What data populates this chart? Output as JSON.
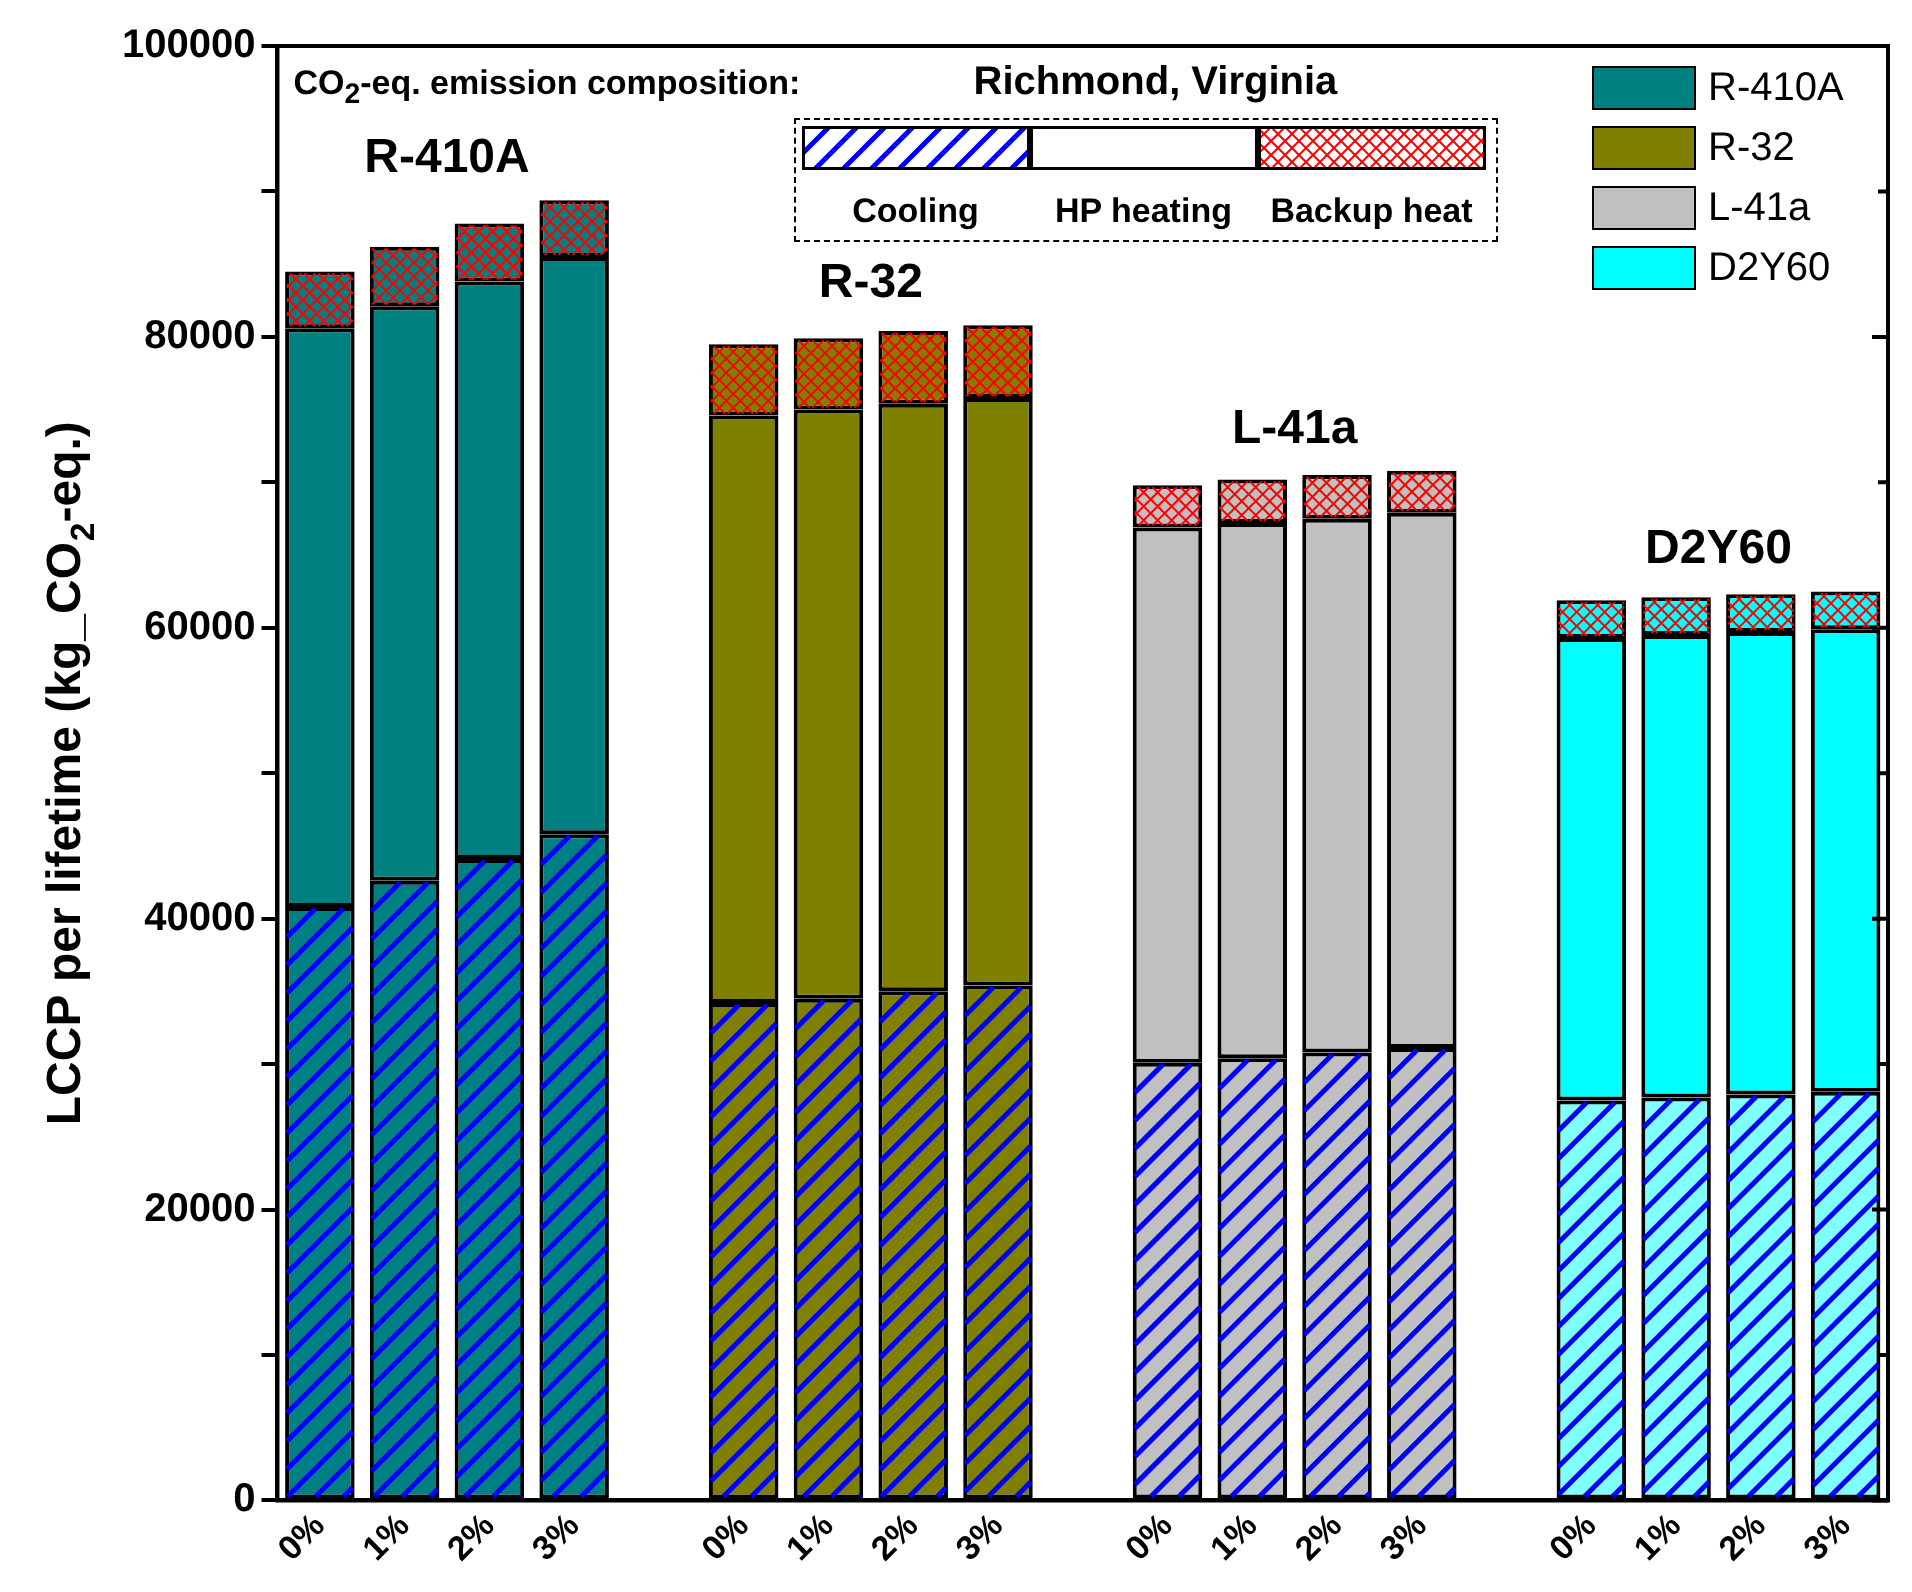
{
  "chart_data": {
    "type": "bar",
    "stacked": true,
    "ylabel": "LCCP per lifetime (kg_CO$_{2}$-eq.)",
    "annotations": [
      "CO$_{2}$-eq. emission composition:",
      "Richmond, Virginia",
      "Cooling",
      "HP heating",
      "Backup heat",
      "R-410A",
      "R-32",
      "L-41a",
      "D2Y60",
      "R-410A",
      "R-32",
      "L-41a",
      "D2Y60"
    ],
    "categories": [
      "0%",
      "1%",
      "2%",
      "3%",
      null,
      "0%",
      "1%",
      "2%",
      "3%",
      null,
      "0%",
      "1%",
      "2%",
      "3%",
      null,
      "0%",
      "1%",
      "2%",
      "3%"
    ],
    "series": [
      {
        "color": "#0000ff",
        "colors": [
          "#008080",
          "#008080",
          "#008080",
          "#008080",
          "#ffffff",
          "#808000",
          "#808000",
          "#808000",
          "#808000",
          "#ffffff",
          "#c0c0c0",
          "#c0c0c0",
          "#c0c0c0",
          "#c0c0c0",
          "#ffffff",
          "#80ffff",
          "#80ffff",
          "#80ffff",
          "#80ffff"
        ],
        "values": [
          40800,
          42600,
          44100,
          45800,
          null,
          34200,
          34500,
          35000,
          35400,
          null,
          30100,
          30400,
          30800,
          31100,
          null,
          27500,
          27700,
          27900,
          28100
        ]
      },
      {
        "colors": [
          "#008080",
          "#008080",
          "#008080",
          "#008080",
          "#ffffff",
          "#808000",
          "#808000",
          "#808000",
          "#808000",
          "#ffffff",
          "#c0c0c0",
          "#c0c0c0",
          "#c0c0c0",
          "#c0c0c0",
          "#ffffff",
          "#00ffff",
          "#00ffff",
          "#00ffff",
          "#00ffff"
        ],
        "color": "#ffffff",
        "values": [
          39800,
          39500,
          39700,
          39700,
          null,
          40400,
          40500,
          40400,
          40400,
          null,
          36800,
          36800,
          36700,
          36800,
          null,
          31800,
          31800,
          31800,
          31800
        ]
      },
      {
        "colors": [
          "#008080",
          "#008080",
          "#008080",
          "#008080",
          "#ffffff",
          "#808000",
          "#808000",
          "#808000",
          "#808000",
          "#ffffff",
          "#c0c0c0",
          "#c0c0c0",
          "#c0c0c0",
          "#c0c0c0",
          "#ffffff",
          "#00ffff",
          "#00ffff",
          "#00ffff",
          "#00ffff"
        ],
        "color": "#ff0000",
        "values": [
          3900,
          4100,
          4000,
          3900,
          null,
          4900,
          4900,
          5000,
          5000,
          null,
          2900,
          3000,
          3000,
          2900,
          null,
          2600,
          2600,
          2600,
          2600
        ]
      }
    ],
    "ylim": [
      0,
      100000
    ],
    "yticks": [
      0,
      {
        "value": 10000,
        "label": null
      },
      20000,
      {
        "value": 30000,
        "label": null
      },
      40000,
      {
        "value": 50000,
        "label": null
      },
      60000,
      {
        "value": 70000,
        "label": null
      },
      80000,
      {
        "value": 90000,
        "label": null
      },
      100000
    ],
    "grid": false
  }
}
